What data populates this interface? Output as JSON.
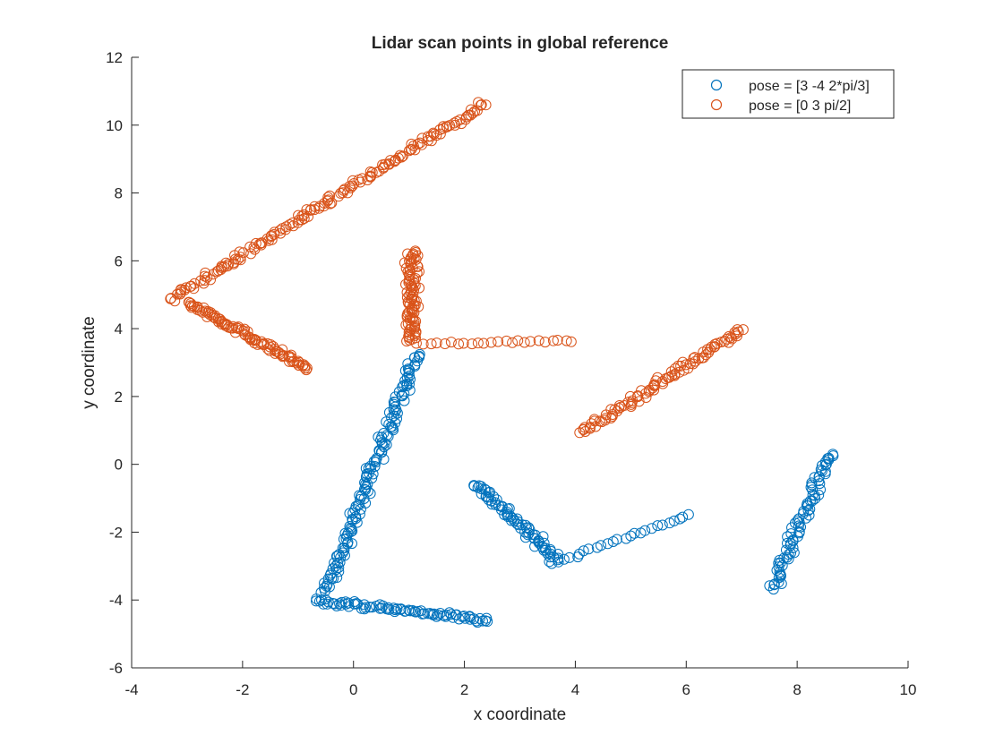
{
  "chart_data": {
    "type": "scatter",
    "title": "Lidar scan points in global reference",
    "xlabel": "x coordinate",
    "ylabel": "y coordinate",
    "xlim": [
      -4,
      10
    ],
    "ylim": [
      -6,
      12
    ],
    "xticks": [
      -4,
      -2,
      0,
      2,
      4,
      6,
      8,
      10
    ],
    "yticks": [
      -6,
      -4,
      -2,
      0,
      2,
      4,
      6,
      8,
      10,
      12
    ],
    "grid": false,
    "legend_position": "top-right",
    "marker": "open-circle",
    "series": [
      {
        "name": "pose = [3 -4 2*pi/3]",
        "color": "#0072BD",
        "segments": [
          {
            "from": [
              1.15,
              3.3
            ],
            "to": [
              -0.5,
              -3.8
            ],
            "count": 150,
            "spread": 0.09
          },
          {
            "from": [
              -0.7,
              -4.0
            ],
            "to": [
              2.45,
              -4.6
            ],
            "count": 85,
            "spread": 0.07
          },
          {
            "from": [
              2.2,
              -0.55
            ],
            "to": [
              3.7,
              -2.85
            ],
            "count": 75,
            "spread": 0.1
          },
          {
            "from": [
              3.55,
              -2.95
            ],
            "to": [
              6.1,
              -1.45
            ],
            "count": 26,
            "spread": 0.04
          },
          {
            "from": [
              8.6,
              0.35
            ],
            "to": [
              7.55,
              -3.7
            ],
            "count": 80,
            "spread": 0.1
          }
        ]
      },
      {
        "name": "pose = [0 3 pi/2]",
        "color": "#D95319",
        "segments": [
          {
            "from": [
              -3.3,
              4.85
            ],
            "to": [
              2.4,
              10.65
            ],
            "count": 165,
            "spread": 0.08
          },
          {
            "from": [
              -3.0,
              4.8
            ],
            "to": [
              -0.8,
              2.8
            ],
            "count": 95,
            "spread": 0.08
          },
          {
            "from": [
              1.05,
              6.3
            ],
            "to": [
              1.05,
              3.6
            ],
            "count": 90,
            "spread": 0.09
          },
          {
            "from": [
              1.1,
              3.55
            ],
            "to": [
              4.0,
              3.65
            ],
            "count": 24,
            "spread": 0.03
          },
          {
            "from": [
              4.1,
              0.9
            ],
            "to": [
              7.0,
              4.0
            ],
            "count": 95,
            "spread": 0.09
          }
        ]
      }
    ]
  }
}
